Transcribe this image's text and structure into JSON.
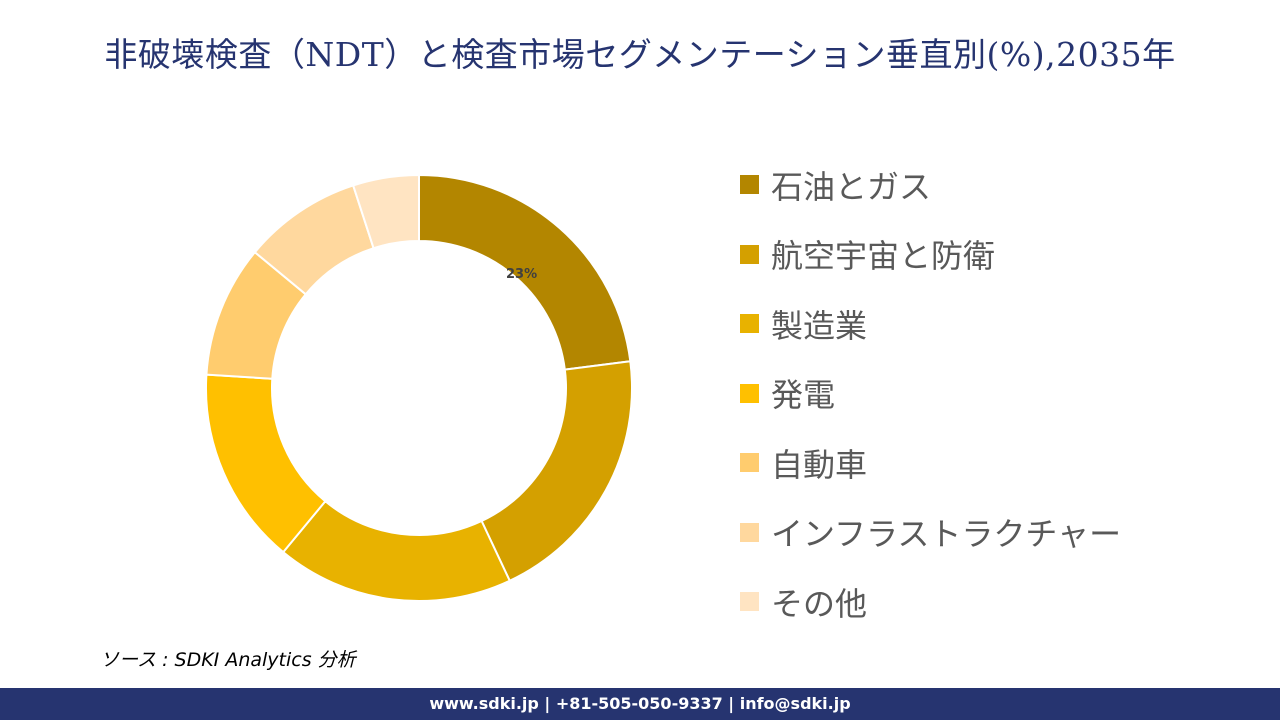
{
  "title": "非破壊検査（NDT）と検査市場セグメンテーション垂直別(%),2035年",
  "chart_data": {
    "type": "donut",
    "title": "非破壊検査（NDT）と検査市場セグメンテーション垂直別(%),2035年",
    "categories": [
      "石油とガス",
      "航空宇宙と防衛",
      "製造業",
      "発電",
      "自動車",
      "インフラストラクチャー",
      "その他"
    ],
    "values": [
      23,
      20,
      18,
      15,
      10,
      9,
      5
    ],
    "colors": [
      "#B38600",
      "#D4A000",
      "#E8B200",
      "#FFC000",
      "#FFCC6E",
      "#FFD89E",
      "#FFE4C2"
    ],
    "data_labels": [
      "23%",
      "",
      "",
      "",
      "",
      "",
      ""
    ],
    "legend_position": "right"
  },
  "source": "ソース : SDKI Analytics 分析",
  "footer": "www.sdki.jp | +81-505-050-9337 | info@sdki.jp"
}
